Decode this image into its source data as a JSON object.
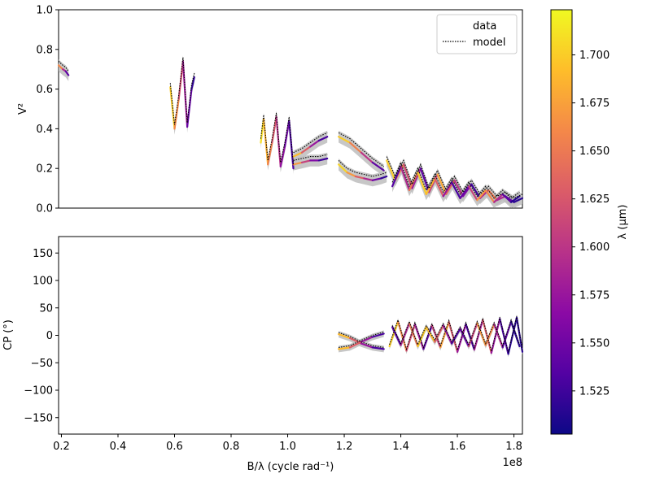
{
  "chart_data": [
    {
      "type": "line",
      "panel": "top",
      "ylabel": "V²",
      "ylim": [
        0.0,
        1.0
      ],
      "xlim": [
        19000000.0,
        183000000.0
      ],
      "y_ticks": [
        {
          "v": 0.0,
          "label": "0.0"
        },
        {
          "v": 0.2,
          "label": "0.2"
        },
        {
          "v": 0.4,
          "label": "0.4"
        },
        {
          "v": 0.6,
          "label": "0.6"
        },
        {
          "v": 0.8,
          "label": "0.8"
        },
        {
          "v": 1.0,
          "label": "1.0"
        }
      ],
      "legend": {
        "position": "upper-right",
        "entries": [
          {
            "label": "data",
            "style": "gradient-solid"
          },
          {
            "label": "model",
            "style": "black-dotted"
          }
        ]
      },
      "series": [
        {
          "x": [
            19000000.0,
            20500000.0,
            21500000.0,
            22500000.0
          ],
          "y": [
            0.72,
            0.7,
            0.69,
            0.67
          ],
          "lam": [
            1.7,
            1.62,
            1.56,
            1.52
          ]
        },
        {
          "x": [
            58500000.0,
            60000000.0,
            61500000.0,
            63000000.0,
            64500000.0,
            66000000.0,
            67000000.0
          ],
          "y": [
            0.61,
            0.4,
            0.55,
            0.74,
            0.41,
            0.6,
            0.66
          ],
          "lam": [
            1.72,
            1.68,
            1.64,
            1.6,
            1.56,
            1.53,
            1.51
          ]
        },
        {
          "x": [
            90500000.0,
            91500000.0,
            93000000.0,
            94500000.0,
            96000000.0,
            97500000.0,
            99000000.0,
            100500000.0,
            102000000.0
          ],
          "y": [
            0.33,
            0.45,
            0.22,
            0.33,
            0.46,
            0.21,
            0.31,
            0.44,
            0.2
          ],
          "lam": [
            1.72,
            1.7,
            1.67,
            1.64,
            1.61,
            1.58,
            1.56,
            1.54,
            1.52
          ]
        },
        {
          "x": [
            102000000.0,
            105000000.0,
            108000000.0,
            111000000.0,
            114000000.0
          ],
          "y": [
            0.26,
            0.28,
            0.31,
            0.34,
            0.36
          ],
          "lam": [
            1.72,
            1.66,
            1.6,
            1.55,
            1.51
          ]
        },
        {
          "x": [
            102000000.0,
            105000000.0,
            108000000.0,
            111000000.0,
            114000000.0
          ],
          "y": [
            0.22,
            0.23,
            0.24,
            0.24,
            0.25
          ],
          "lam": [
            1.7,
            1.64,
            1.58,
            1.54,
            1.51
          ]
        },
        {
          "x": [
            118000000.0,
            122000000.0,
            126000000.0,
            130000000.0,
            134000000.0
          ],
          "y": [
            0.36,
            0.33,
            0.28,
            0.23,
            0.19
          ],
          "lam": [
            1.72,
            1.68,
            1.63,
            1.57,
            1.51
          ]
        },
        {
          "x": [
            118000000.0,
            121000000.0,
            124000000.0,
            127000000.0,
            130000000.0,
            133000000.0,
            135000000.0
          ],
          "y": [
            0.22,
            0.18,
            0.16,
            0.15,
            0.14,
            0.15,
            0.16
          ],
          "lam": [
            1.72,
            1.69,
            1.65,
            1.61,
            1.57,
            1.53,
            1.51
          ]
        },
        {
          "x": [
            135000000.0,
            138000000.0,
            141000000.0,
            144000000.0,
            147000000.0,
            150000000.0,
            153000000.0,
            156000000.0,
            159000000.0,
            162000000.0,
            165000000.0,
            168000000.0,
            171000000.0,
            174000000.0,
            177000000.0,
            180000000.0,
            183000000.0
          ],
          "y": [
            0.24,
            0.14,
            0.22,
            0.1,
            0.2,
            0.08,
            0.17,
            0.07,
            0.14,
            0.06,
            0.12,
            0.05,
            0.09,
            0.04,
            0.06,
            0.03,
            0.05
          ],
          "lam": [
            1.72,
            1.68,
            1.64,
            1.6,
            1.56,
            1.52,
            1.7,
            1.66,
            1.62,
            1.58,
            1.54,
            1.51,
            1.68,
            1.62,
            1.56,
            1.52,
            1.51
          ]
        },
        {
          "x": [
            137000000.0,
            140000000.0,
            143000000.0,
            146000000.0,
            149000000.0,
            152000000.0,
            155000000.0,
            158000000.0,
            161000000.0,
            164000000.0,
            167000000.0,
            170000000.0,
            173000000.0,
            176000000.0,
            179000000.0,
            182000000.0
          ],
          "y": [
            0.11,
            0.21,
            0.09,
            0.18,
            0.07,
            0.15,
            0.06,
            0.13,
            0.05,
            0.11,
            0.04,
            0.09,
            0.03,
            0.07,
            0.03,
            0.06
          ],
          "lam": [
            1.51,
            1.56,
            1.62,
            1.68,
            1.72,
            1.66,
            1.6,
            1.55,
            1.51,
            1.58,
            1.64,
            1.7,
            1.62,
            1.56,
            1.52,
            1.51
          ]
        }
      ]
    },
    {
      "type": "line",
      "panel": "bottom",
      "xlabel": "B/λ (cycle rad⁻¹)",
      "ylabel": "CP (°)",
      "ylim": [
        -180,
        180
      ],
      "xlim": [
        19000000.0,
        183000000.0
      ],
      "x_ticks": [
        {
          "v": 20000000.0,
          "label": "0.2"
        },
        {
          "v": 40000000.0,
          "label": "0.4"
        },
        {
          "v": 60000000.0,
          "label": "0.6"
        },
        {
          "v": 80000000.0,
          "label": "0.8"
        },
        {
          "v": 100000000.0,
          "label": "1.0"
        },
        {
          "v": 120000000.0,
          "label": "1.2"
        },
        {
          "v": 140000000.0,
          "label": "1.4"
        },
        {
          "v": 160000000.0,
          "label": "1.6"
        },
        {
          "v": 180000000.0,
          "label": "1.8"
        }
      ],
      "x_offset_label": "1e8",
      "y_ticks": [
        {
          "v": -150,
          "label": "−150"
        },
        {
          "v": -100,
          "label": "−100"
        },
        {
          "v": -50,
          "label": "−50"
        },
        {
          "v": 0,
          "label": "0"
        },
        {
          "v": 50,
          "label": "50"
        },
        {
          "v": 100,
          "label": "100"
        },
        {
          "v": 150,
          "label": "150"
        }
      ],
      "series": [
        {
          "x": [
            118000000.0,
            122000000.0,
            126000000.0,
            130000000.0,
            134000000.0
          ],
          "y": [
            2,
            -5,
            -15,
            -22,
            -25
          ],
          "lam": [
            1.72,
            1.66,
            1.6,
            1.55,
            1.51
          ]
        },
        {
          "x": [
            118000000.0,
            122000000.0,
            126000000.0,
            130000000.0,
            134000000.0
          ],
          "y": [
            -25,
            -22,
            -12,
            -3,
            3
          ],
          "lam": [
            1.72,
            1.66,
            1.6,
            1.55,
            1.51
          ]
        },
        {
          "x": [
            136000000.0,
            139000000.0,
            142000000.0,
            145000000.0,
            148000000.0,
            151000000.0,
            154000000.0,
            157000000.0,
            160000000.0,
            163000000.0,
            166000000.0,
            169000000.0,
            172000000.0,
            175000000.0,
            178000000.0,
            181000000.0,
            183000000.0
          ],
          "y": [
            -20,
            25,
            -28,
            20,
            -25,
            18,
            -22,
            24,
            -30,
            20,
            -26,
            28,
            -32,
            30,
            -34,
            32,
            -30
          ],
          "lam": [
            1.72,
            1.68,
            1.64,
            1.6,
            1.56,
            1.52,
            1.7,
            1.65,
            1.6,
            1.55,
            1.51,
            1.66,
            1.6,
            1.55,
            1.51,
            1.52,
            1.51
          ]
        },
        {
          "x": [
            137000000.0,
            140000000.0,
            143000000.0,
            146000000.0,
            149000000.0,
            152000000.0,
            155000000.0,
            158000000.0,
            161000000.0,
            164000000.0,
            167000000.0,
            170000000.0,
            173000000.0,
            176000000.0,
            179000000.0,
            182000000.0
          ],
          "y": [
            15,
            -18,
            22,
            -20,
            15,
            -12,
            18,
            -15,
            12,
            -20,
            22,
            -18,
            20,
            -22,
            25,
            -20
          ],
          "lam": [
            1.51,
            1.56,
            1.62,
            1.68,
            1.72,
            1.66,
            1.6,
            1.55,
            1.51,
            1.58,
            1.64,
            1.7,
            1.62,
            1.56,
            1.52,
            1.51
          ]
        }
      ]
    }
  ],
  "colorbar": {
    "label": "λ (μm)",
    "vmin": 1.5025,
    "vmax": 1.7235,
    "colormap": "plasma",
    "ticks": [
      {
        "v": 1.525,
        "label": "1.525"
      },
      {
        "v": 1.55,
        "label": "1.550"
      },
      {
        "v": 1.575,
        "label": "1.575"
      },
      {
        "v": 1.6,
        "label": "1.600"
      },
      {
        "v": 1.625,
        "label": "1.625"
      },
      {
        "v": 1.65,
        "label": "1.650"
      },
      {
        "v": 1.675,
        "label": "1.675"
      },
      {
        "v": 1.7,
        "label": "1.700"
      }
    ],
    "colors": [
      "#0d0887",
      "#5302a3",
      "#8b0aa5",
      "#b83289",
      "#db5c68",
      "#f48849",
      "#febd2a",
      "#f0f921"
    ]
  }
}
